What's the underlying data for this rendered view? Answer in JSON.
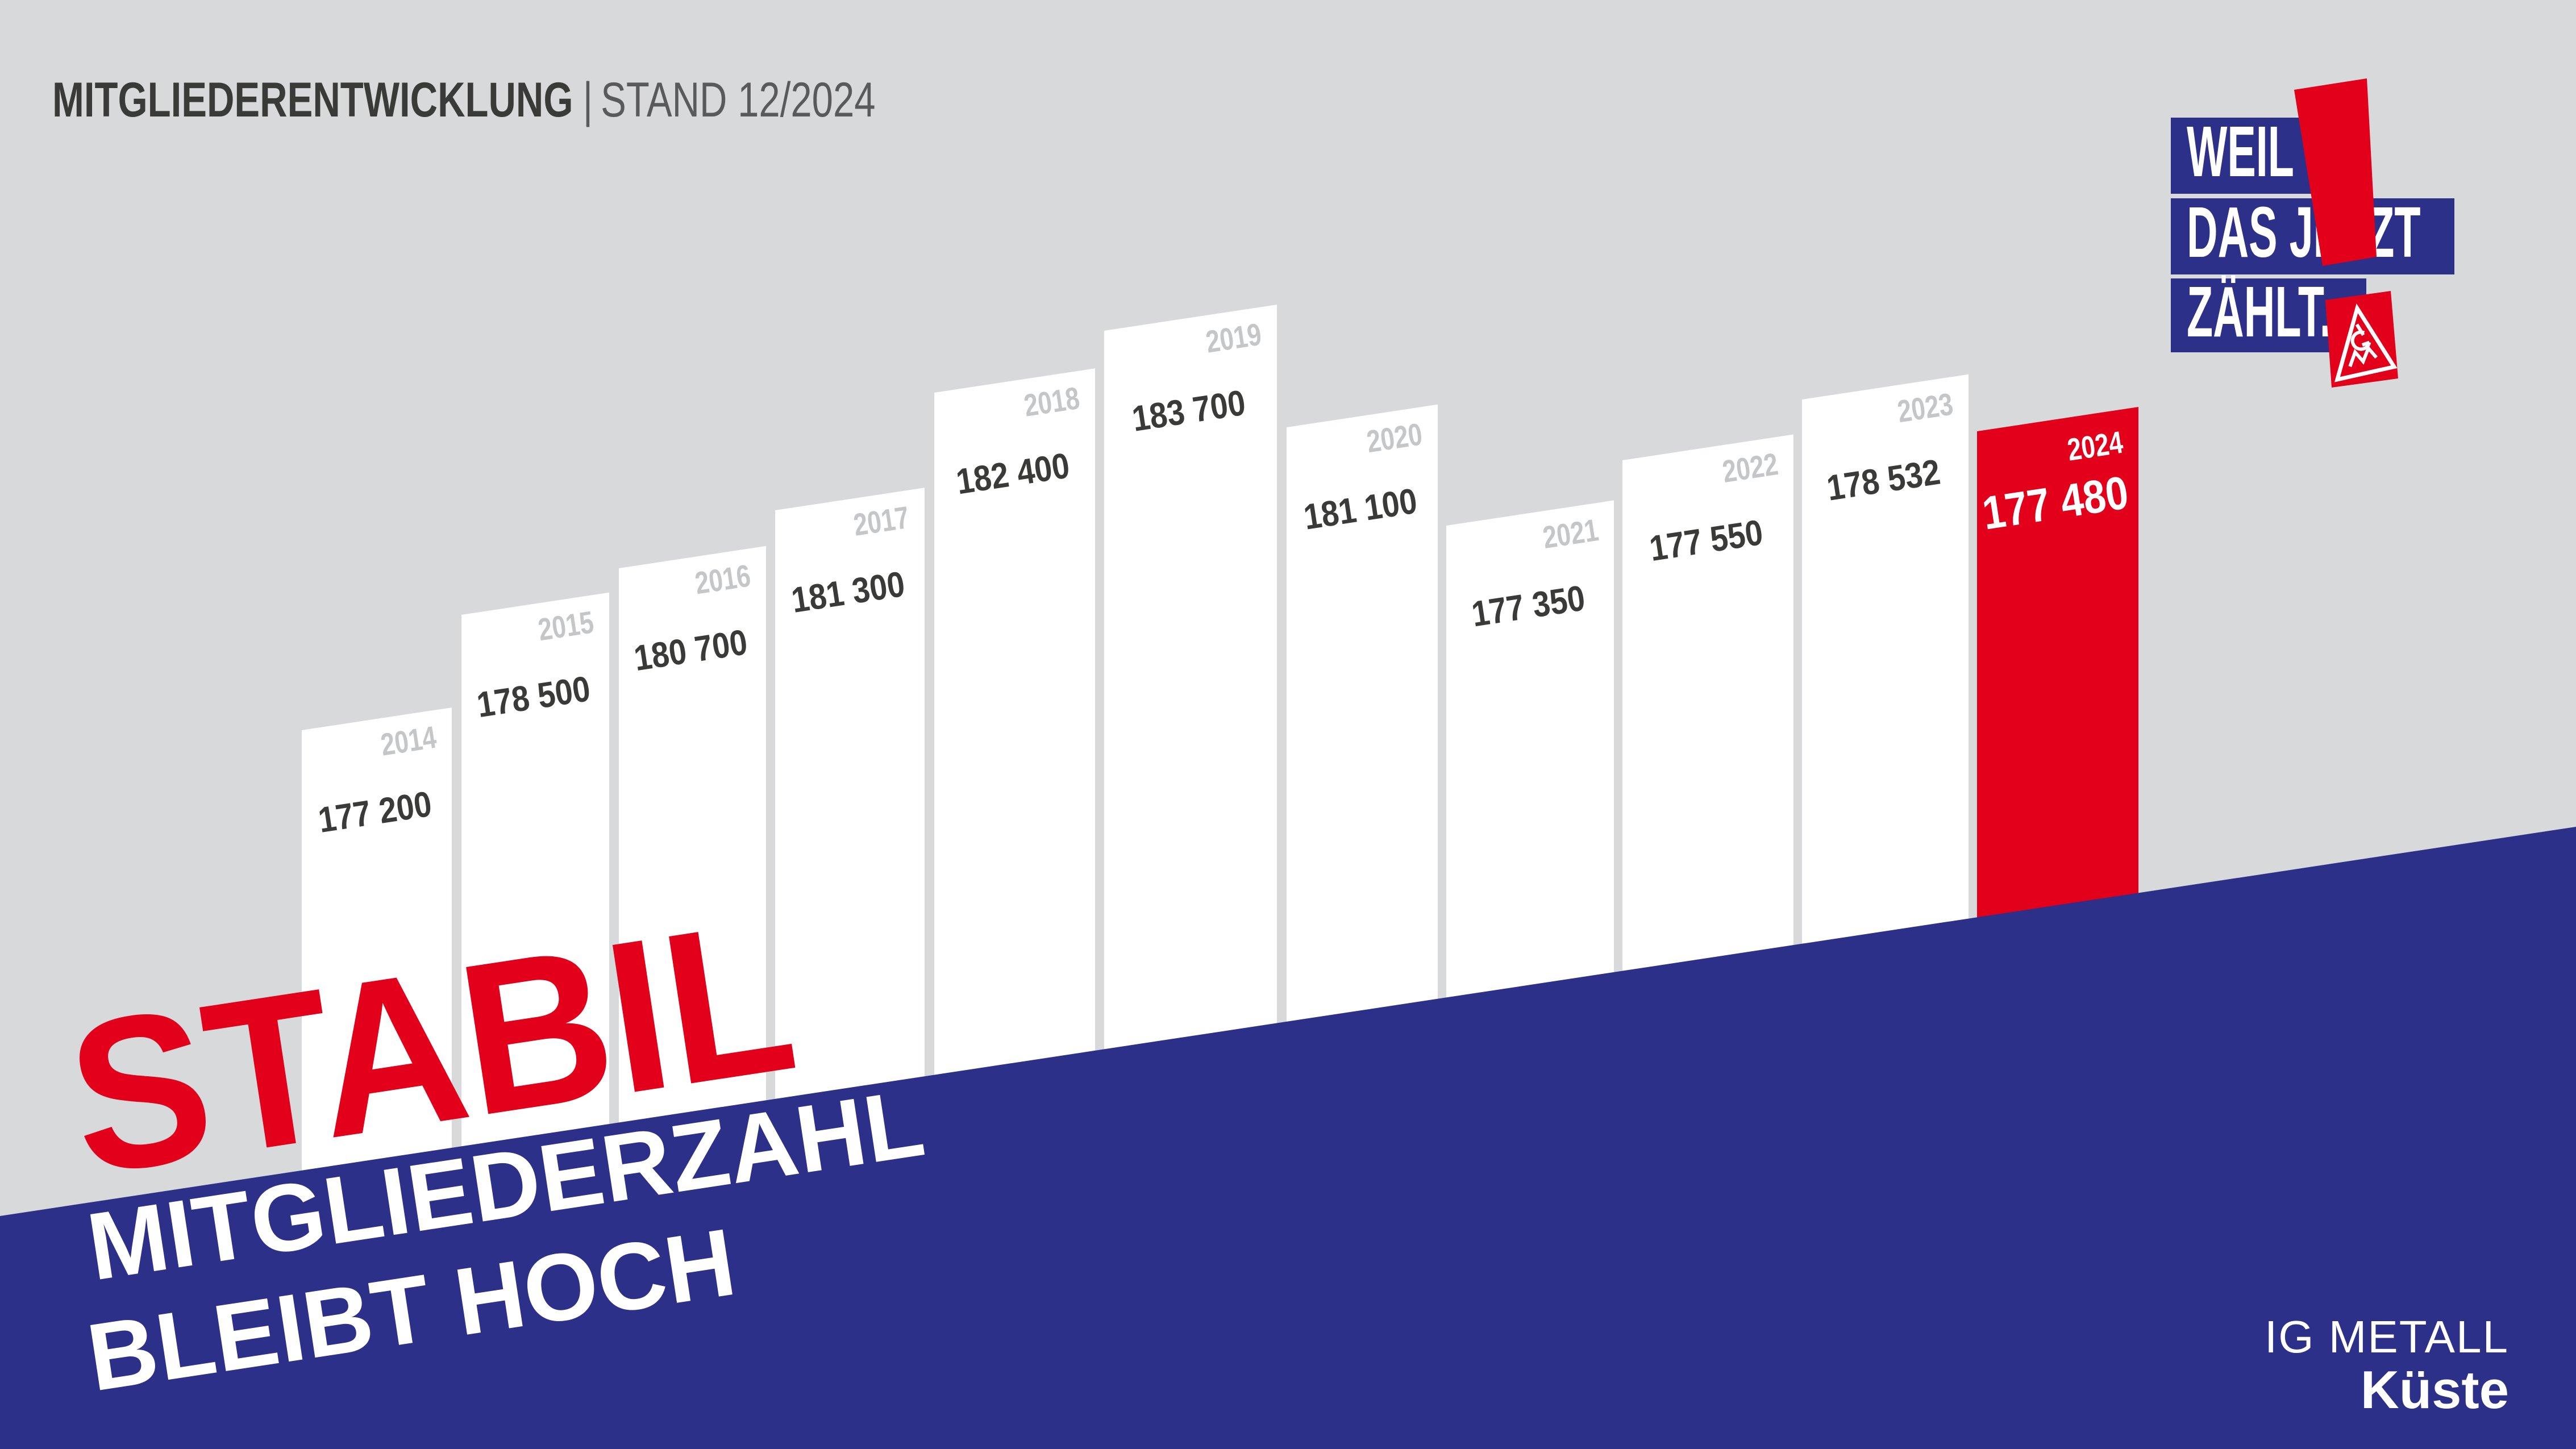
{
  "header": {
    "title": "MITGLIEDERENTWICKLUNG",
    "divider": "|",
    "subtitle": "STAND 12/2024"
  },
  "campaign_badge": {
    "line1": "WEIL",
    "line2": "DAS JETZT",
    "line3": "ZÄHLT.",
    "logo": "IGM"
  },
  "headline": {
    "word": "STABIL",
    "line2": "MITGLIEDERZAHL",
    "line3": "BLEIBT HOCH"
  },
  "footer": {
    "org": "IG METALL",
    "region": "Küste"
  },
  "chart_data": {
    "type": "bar",
    "title": "MITGLIEDERENTWICKLUNG",
    "subtitle": "STAND 12/2024",
    "categories": [
      "2014",
      "2015",
      "2016",
      "2017",
      "2018",
      "2019",
      "2020",
      "2021",
      "2022",
      "2023",
      "2024"
    ],
    "values": [
      177200,
      178500,
      180700,
      181300,
      182400,
      183700,
      181100,
      177350,
      177550,
      178532,
      177480
    ],
    "value_labels": [
      "177 200",
      "178 500",
      "180 700",
      "181 300",
      "182 400",
      "183 700",
      "181 100",
      "177 350",
      "177 550",
      "178 532",
      "177 480"
    ],
    "highlight_index": 10,
    "highlight_year": "2024",
    "legend": "none",
    "grid": "off",
    "baseline": "diagonal baseline rising from bottom-left to upper-right",
    "bar_color": "#ffffff",
    "highlight_color": "#e2001a",
    "year_label_color": "#c5c6c8",
    "value_label_color": "#3a3a39",
    "highlight_label_color": "#ffffff"
  },
  "colors": {
    "background": "#d8d9da",
    "band_blue": "#2d3088",
    "accent_red": "#e2001a",
    "text_dark": "#3a3a39",
    "text_light_gray": "#c5c6c8",
    "white": "#ffffff"
  }
}
